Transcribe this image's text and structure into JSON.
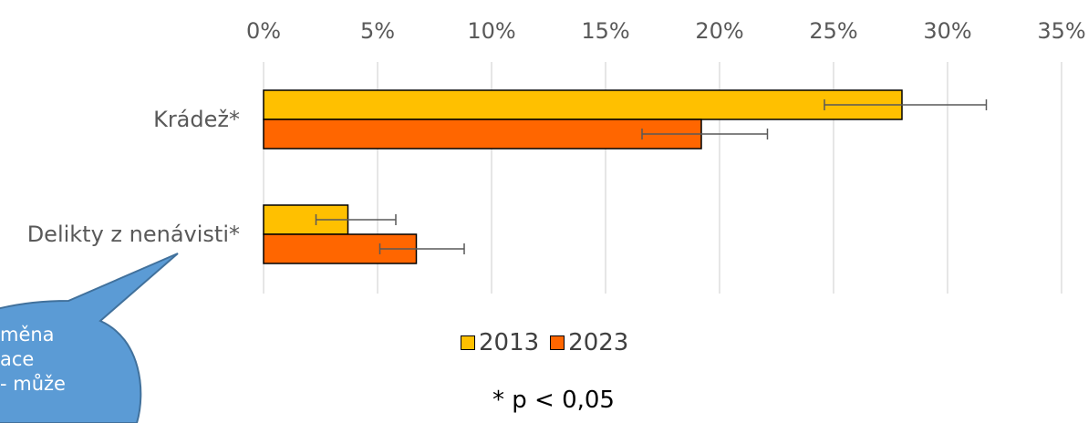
{
  "chart_data": {
    "type": "bar",
    "orientation": "horizontal",
    "categories": [
      "Krádež*",
      "Delikty z nenávisti*"
    ],
    "series": [
      {
        "name": "2013",
        "color": "#FFC000",
        "values": [
          28.0,
          3.7
        ],
        "error_low": [
          24.6,
          2.3
        ],
        "error_high": [
          31.7,
          5.8
        ]
      },
      {
        "name": "2023",
        "color": "#FF6600",
        "values": [
          19.2,
          6.7
        ],
        "error_low": [
          16.6,
          5.1
        ],
        "error_high": [
          22.1,
          8.8
        ]
      }
    ],
    "xlim": [
      0,
      35
    ],
    "xticks": [
      "0%",
      "5%",
      "10%",
      "15%",
      "20%",
      "25%",
      "30%",
      "35%"
    ],
    "x_axis_position": "top",
    "grid": true,
    "legend_position": "bottom"
  },
  "footnote": "* p < 0,05",
  "callout": {
    "lines": [
      "měna",
      "ace",
      "- může"
    ],
    "color": "#5B9BD5"
  }
}
